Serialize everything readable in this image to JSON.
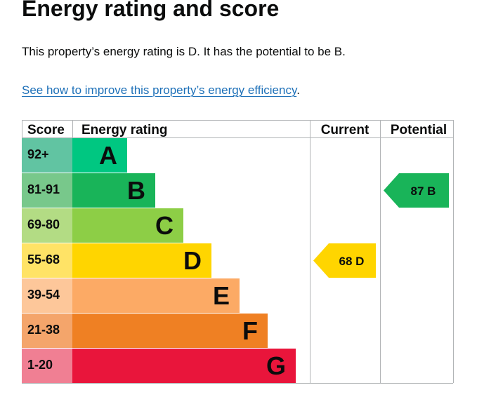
{
  "heading": "Energy rating and score",
  "intro_text": "This property’s energy rating is D. It has the potential to be B.",
  "link": {
    "text": "See how to improve this property’s energy efficiency",
    "trailing": "."
  },
  "chart_data": {
    "type": "bar",
    "columns": {
      "score": "Score",
      "rating": "Energy rating",
      "current": "Current",
      "potential": "Potential"
    },
    "bands": [
      {
        "letter": "A",
        "range": "92+",
        "color": "#00c781",
        "score_color": "#61c4a2"
      },
      {
        "letter": "B",
        "range": "81-91",
        "color": "#19b459",
        "score_color": "#78c88b"
      },
      {
        "letter": "C",
        "range": "69-80",
        "color": "#8dce46",
        "score_color": "#b3dc84"
      },
      {
        "letter": "D",
        "range": "55-68",
        "color": "#ffd500",
        "score_color": "#ffe366"
      },
      {
        "letter": "E",
        "range": "39-54",
        "color": "#fcaa65",
        "score_color": "#fdc79a"
      },
      {
        "letter": "F",
        "range": "21-38",
        "color": "#ef8023",
        "score_color": "#f4a56b"
      },
      {
        "letter": "G",
        "range": "1-20",
        "color": "#e9153b",
        "score_color": "#f07f93"
      }
    ],
    "current": {
      "value": 68,
      "letter": "D",
      "label": "68 D",
      "color": "#ffd500"
    },
    "potential": {
      "value": 87,
      "letter": "B",
      "label": "87 B",
      "color": "#19b459"
    }
  }
}
